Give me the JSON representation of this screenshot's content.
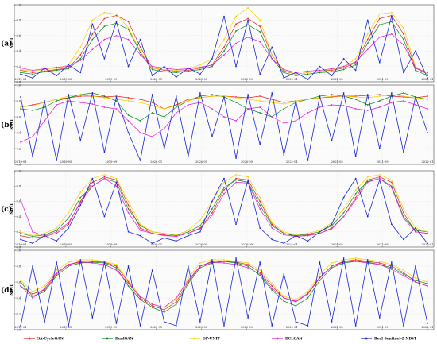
{
  "chart_data": {
    "type": "line",
    "panels": [
      {
        "label": "(a)",
        "ylabel": "NDVI",
        "ylim": [
          0.0,
          1.0
        ],
        "yticks": [
          "0.0",
          "0.2",
          "0.4",
          "0.6",
          "0.8",
          "1.0"
        ],
        "xticks": [
          "2019-01",
          "2019-05",
          "2019-09",
          "2020-01",
          "2020-05",
          "2020-09",
          "2021-01",
          "2021-05",
          "2021-09",
          "2022-01"
        ],
        "series": [
          {
            "name": "SA-CycleGAN",
            "values": [
              0.15,
              0.12,
              0.14,
              0.16,
              0.18,
              0.35,
              0.62,
              0.82,
              0.86,
              0.78,
              0.45,
              0.18,
              0.15,
              0.14,
              0.15,
              0.18,
              0.22,
              0.45,
              0.75,
              0.82,
              0.72,
              0.35,
              0.14,
              0.1,
              0.12,
              0.14,
              0.15,
              0.18,
              0.25,
              0.55,
              0.82,
              0.86,
              0.62,
              0.18,
              0.1
            ]
          },
          {
            "name": "DualGAN",
            "values": [
              0.12,
              0.1,
              0.13,
              0.15,
              0.17,
              0.3,
              0.55,
              0.72,
              0.76,
              0.68,
              0.38,
              0.16,
              0.13,
              0.12,
              0.14,
              0.16,
              0.2,
              0.4,
              0.66,
              0.74,
              0.65,
              0.3,
              0.12,
              0.08,
              0.1,
              0.12,
              0.13,
              0.16,
              0.22,
              0.5,
              0.74,
              0.78,
              0.55,
              0.15,
              0.08
            ]
          },
          {
            "name": "GP-UNIT",
            "values": [
              0.16,
              0.14,
              0.16,
              0.18,
              0.22,
              0.45,
              0.8,
              0.9,
              0.88,
              0.7,
              0.4,
              0.18,
              0.16,
              0.15,
              0.17,
              0.22,
              0.3,
              0.55,
              0.85,
              0.96,
              0.8,
              0.35,
              0.15,
              0.1,
              0.12,
              0.14,
              0.16,
              0.2,
              0.3,
              0.62,
              0.88,
              0.9,
              0.7,
              0.2,
              0.1
            ]
          },
          {
            "name": "DCLGAN",
            "values": [
              0.18,
              0.15,
              0.17,
              0.19,
              0.2,
              0.28,
              0.42,
              0.55,
              0.6,
              0.55,
              0.35,
              0.2,
              0.18,
              0.16,
              0.17,
              0.19,
              0.22,
              0.35,
              0.5,
              0.58,
              0.52,
              0.3,
              0.16,
              0.12,
              0.14,
              0.15,
              0.17,
              0.2,
              0.26,
              0.42,
              0.58,
              0.62,
              0.48,
              0.18,
              0.12
            ]
          },
          {
            "name": "Real Sentinel-2 NDVI",
            "values": [
              0.1,
              0.05,
              0.18,
              0.08,
              0.22,
              0.12,
              0.75,
              0.3,
              0.78,
              0.2,
              0.55,
              0.08,
              0.2,
              0.06,
              0.18,
              0.1,
              0.3,
              0.85,
              0.2,
              0.8,
              0.1,
              0.45,
              0.05,
              0.12,
              0.03,
              0.2,
              0.08,
              0.3,
              0.15,
              0.8,
              0.25,
              0.85,
              0.12,
              0.4,
              0.05
            ]
          }
        ]
      },
      {
        "label": "(b)",
        "ylabel": "NDVI",
        "ylim": [
          0.0,
          1.0
        ],
        "yticks": [
          "0.0",
          "0.2",
          "0.4",
          "0.6",
          "0.8",
          "1.0"
        ],
        "xticks": [
          "2019-01",
          "2019-05",
          "2019-09",
          "2020-01",
          "2020-05",
          "2020-09",
          "2021-01",
          "2021-05",
          "2021-09",
          "2022-01"
        ],
        "series": [
          {
            "name": "SA-CycleGAN",
            "values": [
              0.72,
              0.75,
              0.78,
              0.82,
              0.84,
              0.86,
              0.86,
              0.85,
              0.86,
              0.84,
              0.82,
              0.78,
              0.7,
              0.75,
              0.82,
              0.84,
              0.86,
              0.86,
              0.85,
              0.84,
              0.86,
              0.82,
              0.78,
              0.8,
              0.82,
              0.84,
              0.85,
              0.86,
              0.86,
              0.87,
              0.88,
              0.86,
              0.85,
              0.84,
              0.86
            ]
          },
          {
            "name": "DualGAN",
            "values": [
              0.7,
              0.68,
              0.72,
              0.8,
              0.84,
              0.88,
              0.9,
              0.86,
              0.8,
              0.62,
              0.55,
              0.65,
              0.6,
              0.72,
              0.8,
              0.86,
              0.88,
              0.85,
              0.78,
              0.7,
              0.65,
              0.6,
              0.7,
              0.78,
              0.82,
              0.86,
              0.88,
              0.86,
              0.82,
              0.75,
              0.8,
              0.86,
              0.9,
              0.85,
              0.82
            ]
          },
          {
            "name": "GP-UNIT",
            "values": [
              0.72,
              0.74,
              0.78,
              0.82,
              0.86,
              0.88,
              0.86,
              0.84,
              0.82,
              0.8,
              0.78,
              0.74,
              0.7,
              0.74,
              0.8,
              0.84,
              0.86,
              0.86,
              0.84,
              0.82,
              0.8,
              0.78,
              0.76,
              0.8,
              0.82,
              0.84,
              0.86,
              0.86,
              0.85,
              0.84,
              0.86,
              0.88,
              0.86,
              0.84,
              0.82
            ]
          },
          {
            "name": "DCLGAN",
            "values": [
              0.28,
              0.35,
              0.55,
              0.75,
              0.8,
              0.78,
              0.76,
              0.72,
              0.7,
              0.55,
              0.4,
              0.35,
              0.45,
              0.65,
              0.75,
              0.78,
              0.7,
              0.6,
              0.55,
              0.7,
              0.72,
              0.6,
              0.52,
              0.55,
              0.65,
              0.72,
              0.75,
              0.74,
              0.7,
              0.68,
              0.72,
              0.78,
              0.8,
              0.75,
              0.7
            ]
          },
          {
            "name": "Real Sentinel-2 NDVI",
            "values": [
              0.85,
              0.1,
              0.8,
              0.05,
              0.88,
              0.3,
              0.9,
              0.15,
              0.85,
              0.4,
              0.05,
              0.88,
              0.2,
              0.86,
              0.1,
              0.9,
              0.35,
              0.85,
              0.08,
              0.88,
              0.25,
              0.9,
              0.12,
              0.8,
              0.05,
              0.86,
              0.3,
              0.9,
              0.1,
              0.88,
              0.2,
              0.9,
              0.15,
              0.85,
              0.4
            ]
          }
        ]
      },
      {
        "label": "(c)",
        "ylabel": "NDVI",
        "ylim": [
          0.0,
          1.0
        ],
        "yticks": [
          "0.0",
          "0.2",
          "0.4",
          "0.6",
          "0.8",
          "1.0"
        ],
        "xticks": [
          "2019-01",
          "2019-05",
          "2019-09",
          "2020-01",
          "2020-05",
          "2020-09",
          "2021-01",
          "2021-05",
          "2021-09",
          "2022-01"
        ],
        "series": [
          {
            "name": "SA-CycleGAN",
            "values": [
              0.15,
              0.12,
              0.14,
              0.18,
              0.3,
              0.6,
              0.85,
              0.92,
              0.88,
              0.55,
              0.25,
              0.18,
              0.16,
              0.14,
              0.18,
              0.25,
              0.45,
              0.75,
              0.9,
              0.88,
              0.6,
              0.3,
              0.18,
              0.14,
              0.16,
              0.18,
              0.25,
              0.4,
              0.65,
              0.88,
              0.92,
              0.85,
              0.45,
              0.2,
              0.18
            ]
          },
          {
            "name": "DualGAN",
            "values": [
              0.18,
              0.14,
              0.16,
              0.22,
              0.38,
              0.65,
              0.8,
              0.9,
              0.85,
              0.5,
              0.28,
              0.2,
              0.18,
              0.15,
              0.2,
              0.28,
              0.5,
              0.78,
              0.88,
              0.85,
              0.55,
              0.28,
              0.18,
              0.15,
              0.17,
              0.2,
              0.28,
              0.45,
              0.7,
              0.86,
              0.9,
              0.8,
              0.4,
              0.22,
              0.2
            ]
          },
          {
            "name": "GP-UNIT",
            "values": [
              0.2,
              0.15,
              0.18,
              0.25,
              0.45,
              0.72,
              0.9,
              0.95,
              0.9,
              0.6,
              0.3,
              0.2,
              0.18,
              0.16,
              0.22,
              0.35,
              0.6,
              0.85,
              0.95,
              0.92,
              0.65,
              0.32,
              0.2,
              0.16,
              0.18,
              0.22,
              0.32,
              0.5,
              0.75,
              0.92,
              0.95,
              0.88,
              0.5,
              0.25,
              0.2
            ]
          },
          {
            "name": "DCLGAN",
            "values": [
              0.62,
              0.2,
              0.15,
              0.2,
              0.32,
              0.58,
              0.8,
              0.9,
              0.8,
              0.45,
              0.22,
              0.18,
              0.15,
              0.14,
              0.18,
              0.24,
              0.42,
              0.7,
              0.85,
              0.84,
              0.5,
              0.25,
              0.16,
              0.14,
              0.15,
              0.18,
              0.24,
              0.4,
              0.62,
              0.85,
              0.9,
              0.78,
              0.38,
              0.2,
              0.18
            ]
          },
          {
            "name": "Real Sentinel-2 NDVI",
            "values": [
              0.1,
              0.05,
              0.15,
              0.08,
              0.25,
              0.55,
              0.9,
              0.4,
              0.85,
              0.2,
              0.15,
              0.05,
              0.12,
              0.08,
              0.15,
              0.2,
              0.6,
              0.9,
              0.3,
              0.88,
              0.25,
              0.1,
              0.05,
              0.15,
              0.08,
              0.2,
              0.3,
              0.65,
              0.9,
              0.4,
              0.88,
              0.3,
              0.1,
              0.25,
              0.05
            ]
          }
        ]
      },
      {
        "label": "(d)",
        "ylabel": "NDVI",
        "ylim": [
          0.0,
          1.0
        ],
        "yticks": [
          "0.0",
          "0.2",
          "0.4",
          "0.6",
          "0.8",
          "1.0"
        ],
        "xticks": [
          "2019-01",
          "2019-05",
          "2019-09",
          "2020-01",
          "2020-05",
          "2020-09",
          "2021-01",
          "2021-05",
          "2021-09",
          "2022-01"
        ],
        "series": [
          {
            "name": "SA-CycleGAN",
            "values": [
              0.55,
              0.45,
              0.5,
              0.7,
              0.82,
              0.86,
              0.86,
              0.85,
              0.8,
              0.6,
              0.4,
              0.3,
              0.25,
              0.35,
              0.6,
              0.8,
              0.86,
              0.86,
              0.85,
              0.82,
              0.72,
              0.55,
              0.4,
              0.35,
              0.45,
              0.65,
              0.8,
              0.86,
              0.88,
              0.86,
              0.84,
              0.8,
              0.72,
              0.6,
              0.55
            ]
          },
          {
            "name": "DualGAN",
            "values": [
              0.6,
              0.42,
              0.48,
              0.68,
              0.8,
              0.84,
              0.85,
              0.84,
              0.78,
              0.55,
              0.38,
              0.28,
              0.22,
              0.32,
              0.58,
              0.78,
              0.84,
              0.86,
              0.84,
              0.8,
              0.68,
              0.5,
              0.36,
              0.3,
              0.4,
              0.62,
              0.78,
              0.84,
              0.86,
              0.85,
              0.82,
              0.78,
              0.7,
              0.62,
              0.58
            ]
          },
          {
            "name": "GP-UNIT",
            "values": [
              0.62,
              0.48,
              0.55,
              0.75,
              0.85,
              0.88,
              0.88,
              0.86,
              0.82,
              0.62,
              0.42,
              0.32,
              0.28,
              0.38,
              0.65,
              0.84,
              0.88,
              0.88,
              0.86,
              0.84,
              0.75,
              0.58,
              0.42,
              0.38,
              0.48,
              0.7,
              0.84,
              0.88,
              0.9,
              0.88,
              0.86,
              0.82,
              0.75,
              0.65,
              0.6
            ]
          },
          {
            "name": "DCLGAN",
            "values": [
              0.55,
              0.4,
              0.52,
              0.72,
              0.82,
              0.85,
              0.84,
              0.82,
              0.75,
              0.58,
              0.42,
              0.32,
              0.28,
              0.4,
              0.62,
              0.8,
              0.85,
              0.84,
              0.82,
              0.78,
              0.7,
              0.52,
              0.4,
              0.36,
              0.46,
              0.66,
              0.8,
              0.85,
              0.86,
              0.84,
              0.82,
              0.76,
              0.68,
              0.6,
              0.55
            ]
          },
          {
            "name": "Real Sentinel-2 NDVI",
            "values": [
              0.05,
              0.8,
              0.1,
              0.85,
              0.05,
              0.88,
              0.15,
              0.85,
              0.08,
              0.8,
              0.05,
              0.75,
              0.1,
              0.05,
              0.8,
              0.1,
              0.88,
              0.05,
              0.9,
              0.15,
              0.85,
              0.05,
              0.7,
              0.1,
              0.05,
              0.85,
              0.1,
              0.9,
              0.05,
              0.88,
              0.15,
              0.85,
              0.05,
              0.8,
              0.08
            ]
          }
        ]
      }
    ],
    "legend": {
      "placement": "bottom",
      "entries": [
        {
          "name": "SA-CycleGAN",
          "color": "#e8231e"
        },
        {
          "name": "DualGAN",
          "color": "#0a8a1a"
        },
        {
          "name": "GP-UNIT",
          "color": "#f5d100"
        },
        {
          "name": "DCLGAN",
          "color": "#e020d6"
        },
        {
          "name": "Real Sentinel-2 NDVI",
          "color": "#1a26d6"
        }
      ]
    },
    "grid": true
  }
}
